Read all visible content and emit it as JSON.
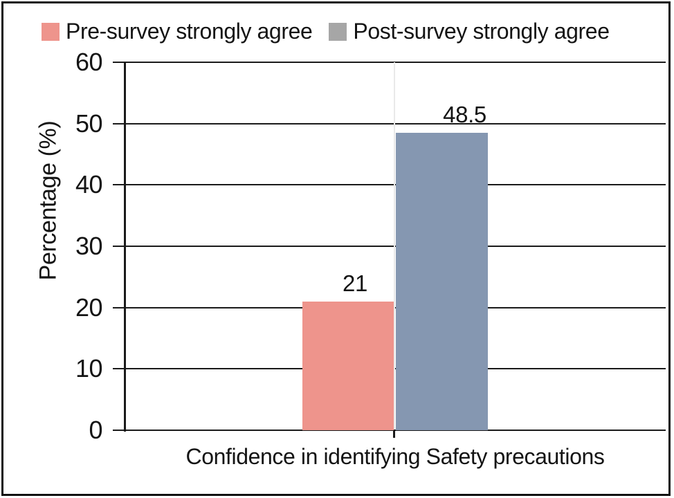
{
  "chart_data": {
    "type": "bar",
    "title": "",
    "categories": [
      "Confidence in identifying Safety precautions"
    ],
    "series": [
      {
        "name": "Pre-survey strongly agree",
        "values": [
          21
        ],
        "bar_color": "#EE948C",
        "legend_color": "#EE948C"
      },
      {
        "name": "Post-survey strongly agree",
        "values": [
          48.5
        ],
        "bar_color": "#8597B1",
        "legend_color": "#A6A6A6"
      }
    ],
    "data_labels": [
      "21",
      "48.5"
    ],
    "xlabel": "Confidence in identifying Safety precautions",
    "ylabel": "Percentage (%)",
    "ylim": [
      0,
      60
    ],
    "yticks": [
      0,
      10,
      20,
      30,
      40,
      50,
      60
    ],
    "grid": "horizontal",
    "legend_position": "top"
  },
  "colors": {
    "axis": "#1a1a1a",
    "faint_gridline": "#e9e9e9",
    "frame": "#111111",
    "text": "#141414",
    "background": "#ffffff"
  }
}
